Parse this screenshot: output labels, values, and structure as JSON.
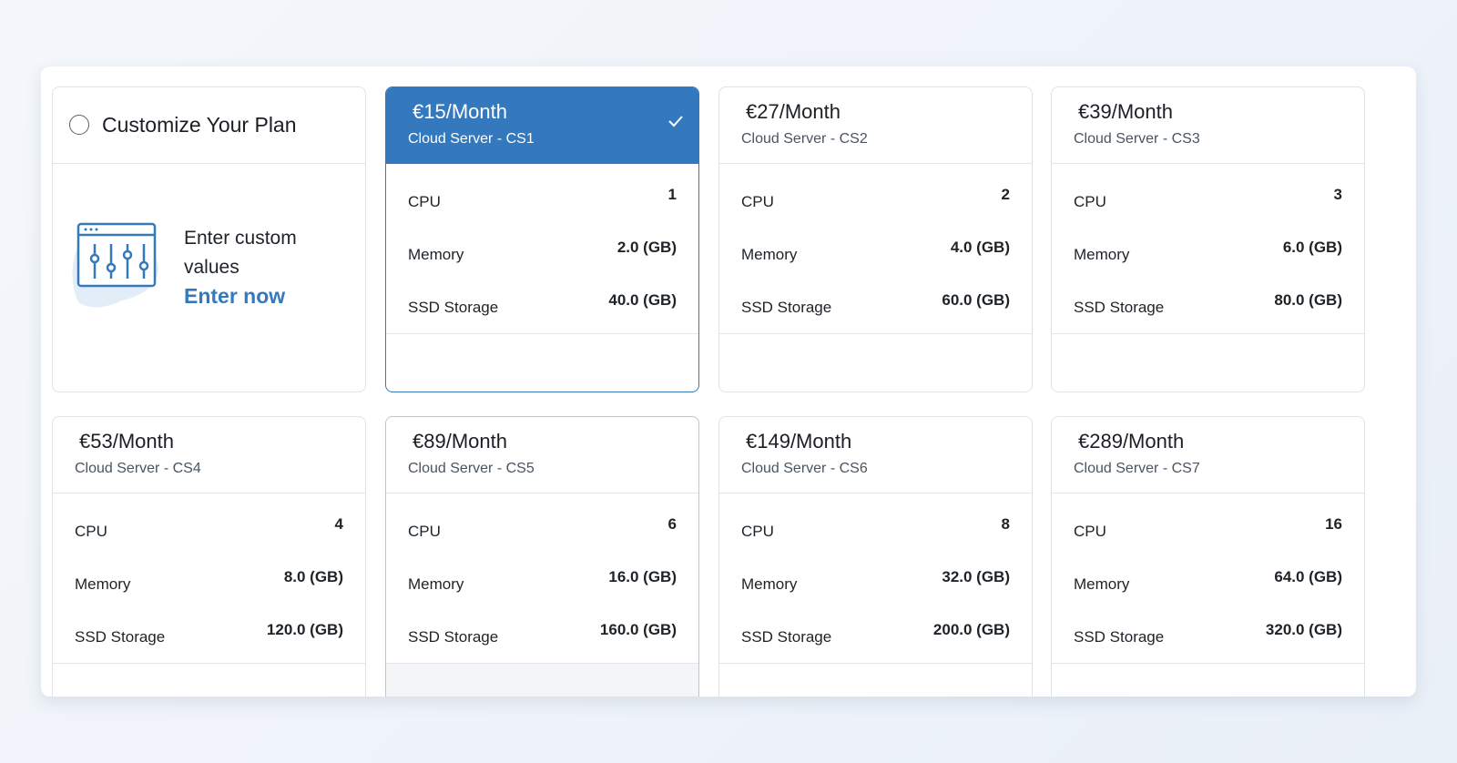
{
  "custom": {
    "title": "Customize Your Plan",
    "text": "Enter custom values",
    "link": "Enter now"
  },
  "plans": [
    {
      "price": "€15/Month",
      "name": "Cloud Server - CS1",
      "specs": [
        {
          "label": "CPU",
          "value": "1"
        },
        {
          "label": "Memory",
          "value": "2.0 (GB)"
        },
        {
          "label": "SSD Storage",
          "value": "40.0 (GB)"
        }
      ]
    },
    {
      "price": "€27/Month",
      "name": "Cloud Server - CS2",
      "specs": [
        {
          "label": "CPU",
          "value": "2"
        },
        {
          "label": "Memory",
          "value": "4.0 (GB)"
        },
        {
          "label": "SSD Storage",
          "value": "60.0 (GB)"
        }
      ]
    },
    {
      "price": "€39/Month",
      "name": "Cloud Server - CS3",
      "specs": [
        {
          "label": "CPU",
          "value": "3"
        },
        {
          "label": "Memory",
          "value": "6.0 (GB)"
        },
        {
          "label": "SSD Storage",
          "value": "80.0 (GB)"
        }
      ]
    },
    {
      "price": "€53/Month",
      "name": "Cloud Server - CS4",
      "specs": [
        {
          "label": "CPU",
          "value": "4"
        },
        {
          "label": "Memory",
          "value": "8.0 (GB)"
        },
        {
          "label": "SSD Storage",
          "value": "120.0 (GB)"
        }
      ]
    },
    {
      "price": "€89/Month",
      "name": "Cloud Server - CS5",
      "specs": [
        {
          "label": "CPU",
          "value": "6"
        },
        {
          "label": "Memory",
          "value": "16.0 (GB)"
        },
        {
          "label": "SSD Storage",
          "value": "160.0 (GB)"
        }
      ]
    },
    {
      "price": "€149/Month",
      "name": "Cloud Server - CS6",
      "specs": [
        {
          "label": "CPU",
          "value": "8"
        },
        {
          "label": "Memory",
          "value": "32.0 (GB)"
        },
        {
          "label": "SSD Storage",
          "value": "200.0 (GB)"
        }
      ]
    },
    {
      "price": "€289/Month",
      "name": "Cloud Server - CS7",
      "specs": [
        {
          "label": "CPU",
          "value": "16"
        },
        {
          "label": "Memory",
          "value": "64.0 (GB)"
        },
        {
          "label": "SSD Storage",
          "value": "320.0 (GB)"
        }
      ]
    }
  ]
}
